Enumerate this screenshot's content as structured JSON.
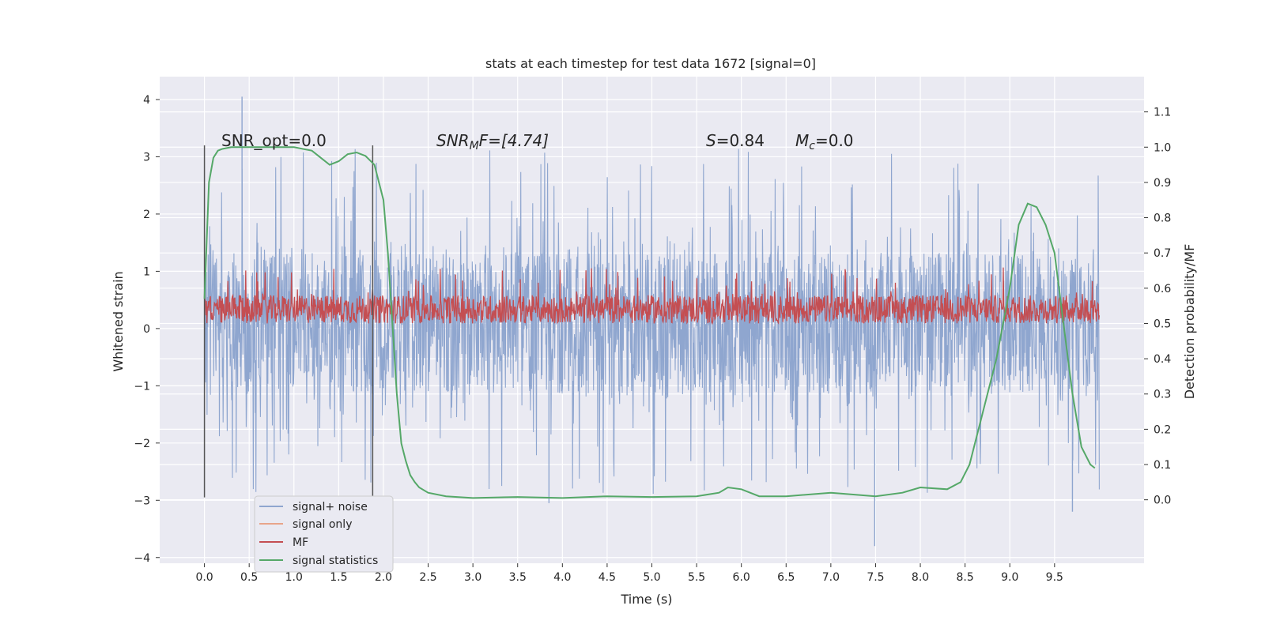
{
  "chart_data": {
    "type": "line",
    "title": "stats at each timestep for test data 1672 [signal=0]",
    "xlabel": "Time (s)",
    "ylabel": "Whitened strain",
    "y2label": "Detection probability/MF",
    "xlim": [
      -0.5,
      10.5
    ],
    "ylim": [
      -4.1,
      4.4
    ],
    "y2lim": [
      -0.18,
      1.2
    ],
    "xticks": [
      "0.0",
      "0.5",
      "1.0",
      "1.5",
      "2.0",
      "2.5",
      "3.0",
      "3.5",
      "4.0",
      "4.5",
      "5.0",
      "5.5",
      "6.0",
      "6.5",
      "7.0",
      "7.5",
      "8.0",
      "8.5",
      "9.0",
      "9.5"
    ],
    "yticks": [
      "4",
      "3",
      "2",
      "1",
      "0",
      "−1",
      "−2",
      "−3",
      "−4"
    ],
    "y2ticks": [
      "1.1",
      "1.0",
      "0.9",
      "0.8",
      "0.7",
      "0.6",
      "0.5",
      "0.4",
      "0.3",
      "0.2",
      "0.1",
      "0.0"
    ],
    "grid": true,
    "legend_placement": "lower-left",
    "colors": {
      "background": "#EAEAF2",
      "grid": "#FFFFFF",
      "signal_noise": "#8FA6CF",
      "signal_only": "#E8A58A",
      "mf": "#C44E52",
      "signal_statistics": "#55A868",
      "vline": "#555555"
    },
    "annotations": {
      "snr_opt": "SNR_opt=0.0",
      "snr_mf_base": "SNR",
      "snr_mf_sub": "M",
      "snr_mf_rest": "F=[4.74]",
      "s_italic": "S",
      "s_rest": "=0.84",
      "mc_base": "M",
      "mc_sub": "c",
      "mc_rest": "=0.0"
    },
    "vlines": [
      {
        "x": 0.0,
        "y_range": [
          -2.95,
          3.2
        ]
      },
      {
        "x": 1.88,
        "y_range": [
          -2.95,
          3.2
        ]
      }
    ],
    "series": [
      {
        "name": "signal+ noise",
        "kind": "noise",
        "x_range": [
          0.0,
          10.0
        ],
        "typical_range": [
          -1.1,
          1.3
        ],
        "extremes": [
          -3.8,
          4.05
        ]
      },
      {
        "name": "signal only",
        "kind": "flat",
        "values": []
      },
      {
        "name": "MF",
        "kind": "noise",
        "axis": "right",
        "x_range": [
          0.0,
          10.0
        ],
        "typical_range": [
          0.5,
          0.58
        ],
        "extremes": [
          0.5,
          0.66
        ]
      },
      {
        "name": "signal statistics",
        "kind": "line",
        "axis": "right",
        "x": [
          0.0,
          0.05,
          0.1,
          0.15,
          0.2,
          0.3,
          0.5,
          0.7,
          1.0,
          1.2,
          1.3,
          1.4,
          1.5,
          1.6,
          1.7,
          1.8,
          1.9,
          2.0,
          2.05,
          2.1,
          2.15,
          2.2,
          2.25,
          2.3,
          2.35,
          2.4,
          2.5,
          2.7,
          3.0,
          3.5,
          4.0,
          4.5,
          5.0,
          5.5,
          5.75,
          5.85,
          6.0,
          6.2,
          6.5,
          7.0,
          7.5,
          7.8,
          8.0,
          8.3,
          8.45,
          8.55,
          8.7,
          8.85,
          9.0,
          9.1,
          9.2,
          9.3,
          9.4,
          9.5,
          9.6,
          9.7,
          9.8,
          9.9,
          9.95
        ],
        "y": [
          0.57,
          0.9,
          0.97,
          0.99,
          0.995,
          1.0,
          1.0,
          1.0,
          1.0,
          0.99,
          0.97,
          0.95,
          0.96,
          0.98,
          0.985,
          0.975,
          0.95,
          0.85,
          0.7,
          0.5,
          0.3,
          0.16,
          0.11,
          0.07,
          0.05,
          0.035,
          0.02,
          0.01,
          0.005,
          0.008,
          0.005,
          0.01,
          0.008,
          0.01,
          0.02,
          0.035,
          0.03,
          0.01,
          0.01,
          0.02,
          0.01,
          0.02,
          0.035,
          0.03,
          0.05,
          0.1,
          0.25,
          0.4,
          0.6,
          0.78,
          0.84,
          0.83,
          0.78,
          0.7,
          0.5,
          0.3,
          0.15,
          0.1,
          0.09
        ]
      }
    ]
  }
}
